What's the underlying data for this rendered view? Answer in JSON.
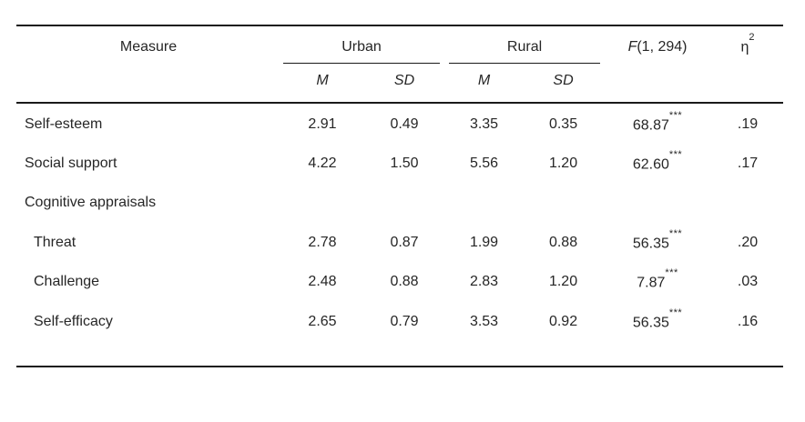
{
  "colors": {
    "text": "#262626",
    "rule": "#1a1a1a",
    "background": "#ffffff"
  },
  "table": {
    "column_headers": {
      "measure": "Measure",
      "urban": "Urban",
      "rural": "Rural",
      "mean": "M",
      "sd": "SD",
      "f_stat": "F",
      "f_df": "(1, 294)",
      "eta": "η",
      "eta_exp": "2"
    },
    "rows": [
      {
        "label": "Self-esteem",
        "indent": false,
        "section": false,
        "urban_m": "2.91",
        "urban_sd": "0.49",
        "rural_m": "3.35",
        "rural_sd": "0.35",
        "f": "68.87",
        "sig": "***",
        "eta_sq": ".19"
      },
      {
        "label": "Social support",
        "indent": false,
        "section": false,
        "urban_m": "4.22",
        "urban_sd": "1.50",
        "rural_m": "5.56",
        "rural_sd": "1.20",
        "f": "62.60",
        "sig": "***",
        "eta_sq": ".17"
      },
      {
        "label": "Cognitive appraisals",
        "indent": false,
        "section": true,
        "urban_m": "",
        "urban_sd": "",
        "rural_m": "",
        "rural_sd": "",
        "f": "",
        "sig": "",
        "eta_sq": ""
      },
      {
        "label": "Threat",
        "indent": true,
        "section": false,
        "urban_m": "2.78",
        "urban_sd": "0.87",
        "rural_m": "1.99",
        "rural_sd": "0.88",
        "f": "56.35",
        "sig": "***",
        "eta_sq": ".20"
      },
      {
        "label": "Challenge",
        "indent": true,
        "section": false,
        "urban_m": "2.48",
        "urban_sd": "0.88",
        "rural_m": "2.83",
        "rural_sd": "1.20",
        "f": "7.87",
        "sig": "***",
        "eta_sq": ".03"
      },
      {
        "label": "Self-efficacy",
        "indent": true,
        "section": false,
        "urban_m": "2.65",
        "urban_sd": "0.79",
        "rural_m": "3.53",
        "rural_sd": "0.92",
        "f": "56.35",
        "sig": "***",
        "eta_sq": ".16"
      }
    ]
  }
}
